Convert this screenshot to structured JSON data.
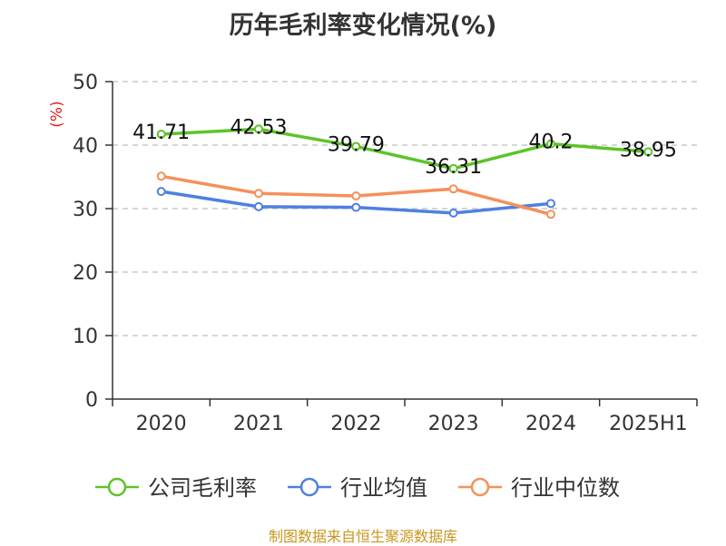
{
  "chart_data": {
    "type": "line",
    "title": "历年毛利率变化情况(%)",
    "ylabel": "(%)",
    "ylabel_color": "#e02020",
    "categories": [
      "2020",
      "2021",
      "2022",
      "2023",
      "2024",
      "2025H1"
    ],
    "yticks": [
      0,
      10,
      20,
      30,
      40,
      50
    ],
    "ylim": [
      0,
      50
    ],
    "grid": true,
    "legend_position": "bottom",
    "series": [
      {
        "name": "公司毛利率",
        "color": "#5ec328",
        "labels": true,
        "values": [
          41.71,
          42.53,
          39.79,
          36.31,
          40.2,
          38.95
        ]
      },
      {
        "name": "行业均值",
        "color": "#4f80e0",
        "labels": false,
        "values": [
          32.7,
          30.3,
          30.2,
          29.3,
          30.8,
          null
        ]
      },
      {
        "name": "行业中位数",
        "color": "#f5905a",
        "labels": false,
        "values": [
          35.1,
          32.4,
          32.0,
          33.1,
          29.1,
          null
        ]
      }
    ]
  },
  "source": "制图数据来自恒生聚源数据库"
}
